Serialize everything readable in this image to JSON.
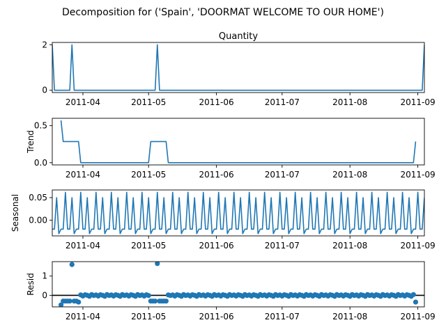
{
  "figure_title": "Decomposition for ('Spain', 'DOORMAT WELCOME TO OUR HOME')",
  "colors": {
    "series": "#1f77b4",
    "axis": "#000000",
    "zero_line": "#000000"
  },
  "chart_data": [
    {
      "type": "line",
      "title": "Quantity",
      "ylabel": "",
      "xlim": [
        "2011-03-18",
        "2011-09-04"
      ],
      "ylim": [
        -0.1,
        2.1
      ],
      "yticks": [
        "0",
        "2"
      ],
      "xticks": [
        "2011-04",
        "2011-05",
        "2011-06",
        "2011-07",
        "2011-08",
        "2011-09"
      ],
      "series": [
        {
          "points": [
            [
              "2011-03-18",
              2
            ],
            [
              "2011-03-19",
              0
            ],
            [
              "2011-03-26",
              0
            ],
            [
              "2011-03-27",
              2
            ],
            [
              "2011-03-28",
              0
            ],
            [
              "2011-05-04",
              0
            ],
            [
              "2011-05-05",
              2
            ],
            [
              "2011-05-06",
              0
            ],
            [
              "2011-09-03",
              0
            ],
            [
              "2011-09-04",
              2
            ]
          ]
        }
      ]
    },
    {
      "type": "line",
      "title": "",
      "ylabel": "Trend",
      "xlim": [
        "2011-03-18",
        "2011-09-04"
      ],
      "ylim": [
        -0.03,
        0.6
      ],
      "yticks": [
        "0.0",
        "0.5"
      ],
      "xticks": [
        "2011-04",
        "2011-05",
        "2011-06",
        "2011-07",
        "2011-08",
        "2011-09"
      ],
      "series": [
        {
          "points": [
            [
              "2011-03-22",
              0.571
            ],
            [
              "2011-03-23",
              0.286
            ],
            [
              "2011-03-30",
              0.286
            ],
            [
              "2011-03-31",
              0
            ],
            [
              "2011-05-01",
              0
            ],
            [
              "2011-05-02",
              0.286
            ],
            [
              "2011-05-09",
              0.286
            ],
            [
              "2011-05-10",
              0
            ],
            [
              "2011-08-30",
              0
            ],
            [
              "2011-08-31",
              0.286
            ]
          ]
        }
      ]
    },
    {
      "type": "line",
      "title": "",
      "ylabel": "Seasonal",
      "xlim": [
        "2011-03-18",
        "2011-09-04"
      ],
      "ylim": [
        -0.035,
        0.067
      ],
      "yticks": [
        "0.05",
        "0.00"
      ],
      "xticks": [
        "2011-04",
        "2011-05",
        "2011-06",
        "2011-07",
        "2011-08",
        "2011-09"
      ],
      "series": [
        {
          "start": "2011-03-18",
          "step_days": 1,
          "period": 7,
          "pattern": [
            -0.02,
            -0.02,
            0.05,
            -0.03,
            -0.02,
            -0.02,
            0.062
          ]
        }
      ]
    },
    {
      "type": "scatter",
      "title": "",
      "ylabel": "Resid",
      "xlim": [
        "2011-03-18",
        "2011-09-04"
      ],
      "ylim": [
        -0.6,
        1.75
      ],
      "yticks": [
        "0",
        "1"
      ],
      "xticks": [
        "2011-04",
        "2011-05",
        "2011-06",
        "2011-07",
        "2011-08",
        "2011-09"
      ],
      "zero_line": 0,
      "series": [
        {
          "points": [
            [
              "2011-03-22",
              -0.5
            ],
            [
              "2011-03-23",
              -0.3
            ],
            [
              "2011-03-24",
              -0.3
            ],
            [
              "2011-03-25",
              -0.3
            ],
            [
              "2011-03-26",
              -0.3
            ],
            [
              "2011-03-27",
              1.6
            ],
            [
              "2011-03-28",
              -0.3
            ],
            [
              "2011-03-29",
              -0.3
            ],
            [
              "2011-03-30",
              -0.35
            ],
            [
              "2011-03-31",
              0.02
            ],
            [
              "2011-05-01",
              -0.01
            ],
            [
              "2011-05-02",
              -0.3
            ],
            [
              "2011-05-03",
              -0.3
            ],
            [
              "2011-05-04",
              -0.3
            ],
            [
              "2011-05-05",
              1.65
            ],
            [
              "2011-05-06",
              -0.3
            ],
            [
              "2011-05-07",
              -0.3
            ],
            [
              "2011-05-08",
              -0.3
            ],
            [
              "2011-05-09",
              -0.3
            ],
            [
              "2011-05-10",
              0.02
            ],
            [
              "2011-08-31",
              -0.35
            ]
          ],
          "fill_range": [
            "2011-03-31",
            "2011-08-30"
          ],
          "fill_pattern": [
            0.02,
            -0.04,
            0.03,
            0.0,
            -0.05,
            0.04,
            -0.01
          ]
        }
      ]
    }
  ]
}
